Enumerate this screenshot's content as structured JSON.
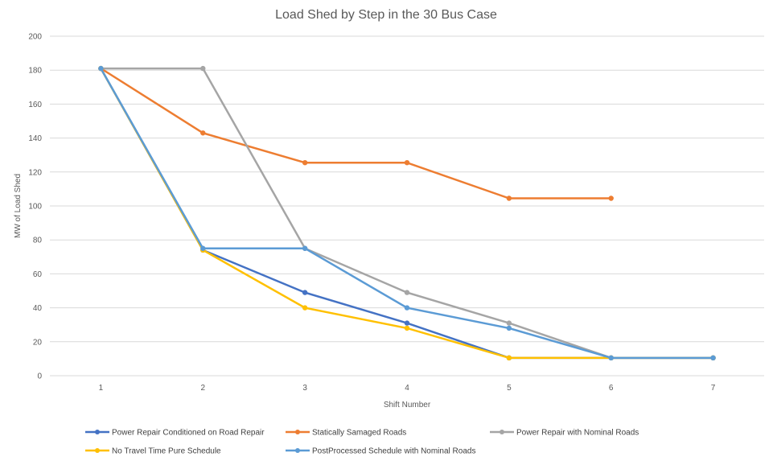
{
  "chart_data": {
    "type": "line",
    "title": "Load Shed by Step in the 30 Bus Case",
    "xlabel": "Shift Number",
    "ylabel": "MW of Load Shed",
    "x": [
      1,
      2,
      3,
      4,
      5,
      6,
      7
    ],
    "ylim": [
      0,
      200
    ],
    "yticks": [
      0,
      20,
      40,
      60,
      80,
      100,
      120,
      140,
      160,
      180,
      200
    ],
    "grid": true,
    "legend_position": "bottom",
    "series": [
      {
        "name": "Power Repair Conditioned on Road Repair",
        "color": "#4472c4",
        "values": [
          181,
          74,
          49,
          31,
          10.5,
          10.5,
          10.5
        ]
      },
      {
        "name": "Statically Samaged Roads",
        "color": "#ed7d31",
        "values": [
          181,
          143,
          125.5,
          125.5,
          104.5,
          104.5,
          null
        ]
      },
      {
        "name": "Power Repair with Nominal Roads",
        "color": "#a5a5a5",
        "values": [
          181,
          181,
          75,
          49,
          31,
          10.5,
          10.5
        ]
      },
      {
        "name": "No Travel Time Pure Schedule",
        "color": "#ffc000",
        "values": [
          181,
          74,
          40,
          28,
          10.5,
          10.5,
          10.5
        ]
      },
      {
        "name": "PostProcessed Schedule with Nominal Roads",
        "color": "#5b9bd5",
        "values": [
          181,
          75,
          75,
          40,
          28,
          10.5,
          10.5
        ]
      }
    ]
  }
}
